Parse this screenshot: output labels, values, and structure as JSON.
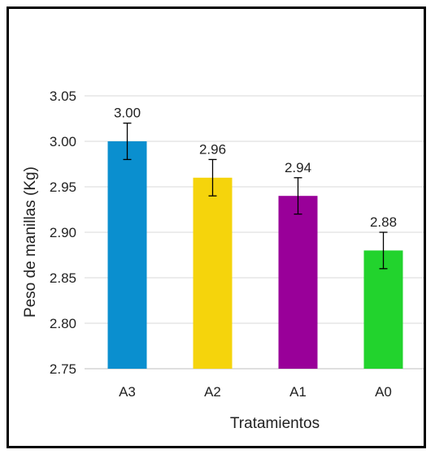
{
  "chart_data": {
    "type": "bar",
    "title": "",
    "xlabel": "Tratamientos",
    "ylabel": "Peso de manillas (Kg)",
    "categories": [
      "A3",
      "A2",
      "A1",
      "A0"
    ],
    "values": [
      3.0,
      2.96,
      2.94,
      2.88
    ],
    "value_labels": [
      "3.00",
      "2.96",
      "2.94",
      "2.88"
    ],
    "error": [
      0.02,
      0.02,
      0.02,
      0.02
    ],
    "colors": [
      "#0a8fcf",
      "#f5d40c",
      "#990099",
      "#22d32d"
    ],
    "ylim": [
      2.75,
      3.05
    ],
    "yticks": [
      2.75,
      2.8,
      2.85,
      2.9,
      2.95,
      3.0,
      3.05
    ],
    "ytick_labels": [
      "2.75",
      "2.80",
      "2.85",
      "2.90",
      "2.95",
      "3.00",
      "3.05"
    ],
    "grid": true,
    "legend": "none"
  }
}
